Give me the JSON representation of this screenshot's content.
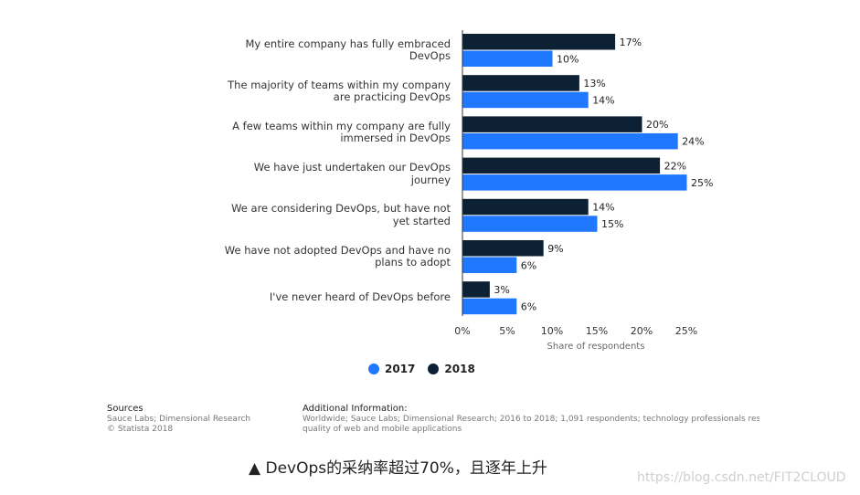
{
  "chart_data": {
    "type": "bar",
    "orientation": "horizontal",
    "categories": [
      "My entire company has fully embraced DevOps",
      "The majority of teams within my company are practicing DevOps",
      "A few teams within my company are fully immersed in DevOps",
      "We have just undertaken our DevOps journey",
      "We are considering DevOps, but have not yet started",
      "We have not adopted DevOps and have no plans to adopt",
      "I've never heard of DevOps before"
    ],
    "series": [
      {
        "name": "2018",
        "color": "#0d2135",
        "values": [
          17,
          13,
          20,
          22,
          14,
          9,
          3
        ]
      },
      {
        "name": "2017",
        "color": "#1f78ff",
        "values": [
          10,
          14,
          24,
          25,
          15,
          6,
          6
        ]
      }
    ],
    "xlabel": "Share of respondents",
    "xticks": [
      "0%",
      "5%",
      "10%",
      "15%",
      "20%",
      "25%"
    ],
    "xlim": [
      0,
      25
    ],
    "value_suffix": "%",
    "legend": [
      {
        "name": "2017",
        "color": "#1f78ff"
      },
      {
        "name": "2018",
        "color": "#0d2135"
      }
    ],
    "legend_placement": "bottom-center",
    "grid": false
  },
  "footer": {
    "sources_title": "Sources",
    "sources_line1": "Sauce Labs; Dimensional Research",
    "sources_line2": "© Statista 2018",
    "info_title": "Additional Information:",
    "info_line1": "Worldwide; Sauce Labs; Dimensional Research; 2016 to 2018; 1,091 respondents; technology professionals respo",
    "info_line2": "quality of web and mobile applications"
  },
  "caption": "▲ DevOps的采纳率超过70%，且逐年上升",
  "watermark": "https://blog.csdn.net/FIT2CLOUD"
}
